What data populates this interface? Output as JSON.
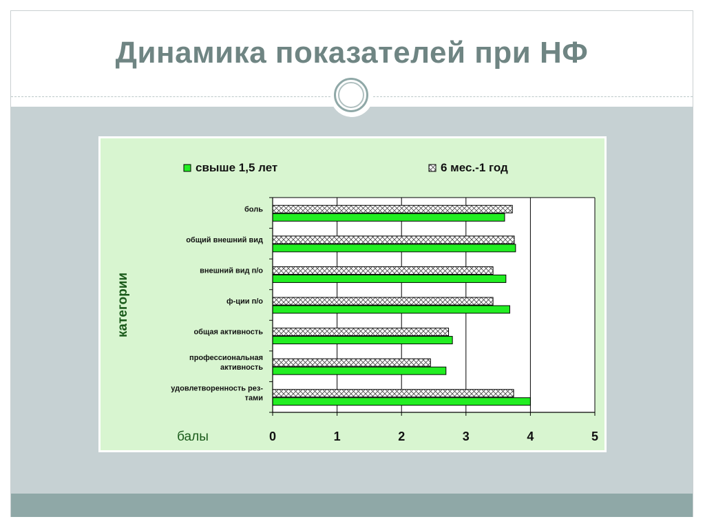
{
  "slide": {
    "title": "Динамика показателей при НФ"
  },
  "colors": {
    "title": "#6f8583",
    "panel": "#d8f5d0",
    "series_green": "#22ee22",
    "axis_text": "#1a5a1a"
  },
  "chart_data": {
    "type": "bar",
    "orientation": "horizontal",
    "ylabel": "категории",
    "xlabel": "балы",
    "xlim": [
      0,
      5
    ],
    "x_ticks": [
      "0",
      "1",
      "2",
      "3",
      "4",
      "5"
    ],
    "grid": true,
    "legend_position": "top",
    "categories": [
      [
        "боль"
      ],
      [
        "общий внешний вид"
      ],
      [
        "внешний вид п/о"
      ],
      [
        "ф-ции п/о"
      ],
      [
        "общая активность"
      ],
      [
        "профессиональная",
        "активность"
      ],
      [
        "удовлетворенность рез-",
        "тами"
      ]
    ],
    "series": [
      {
        "name": "свыше 1,5 лет",
        "pattern": "solid",
        "values": [
          3.6,
          3.77,
          3.62,
          3.68,
          2.79,
          2.69,
          4.0
        ]
      },
      {
        "name": "6 мес.-1 год",
        "pattern": "crosshatch",
        "values": [
          3.72,
          3.75,
          3.42,
          3.42,
          2.73,
          2.45,
          3.74
        ]
      }
    ]
  }
}
